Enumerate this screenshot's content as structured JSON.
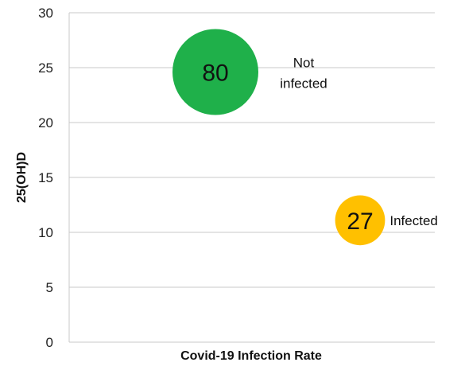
{
  "chart_data": {
    "type": "scatter",
    "subtype": "bubble",
    "title": "",
    "xlabel": "Covid-19 Infection Rate",
    "ylabel": "25(OH)D",
    "ylim": [
      0,
      30
    ],
    "yticks": [
      "0",
      "5",
      "10",
      "15",
      "20",
      "25",
      "30"
    ],
    "grid": true,
    "legend": "none",
    "points": [
      {
        "label_lines": [
          "Not",
          "infected"
        ],
        "size_value": "80",
        "x_position": "left-center",
        "y": 24.6,
        "color": "#1fb04a"
      },
      {
        "label_lines": [
          "Infected"
        ],
        "size_value": "27",
        "x_position": "right",
        "y": 11.1,
        "color": "#ffc000"
      }
    ]
  }
}
